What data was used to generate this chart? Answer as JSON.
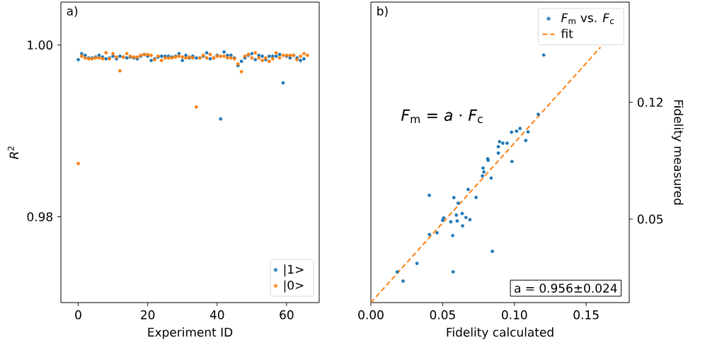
{
  "chart_data": [
    {
      "type": "scatter",
      "title": "a)",
      "xlabel": "Experiment ID",
      "ylabel": "*R*$^{2}$",
      "x": [
        0,
        1,
        2,
        3,
        4,
        5,
        6,
        7,
        8,
        9,
        10,
        11,
        12,
        13,
        14,
        15,
        16,
        17,
        18,
        19,
        20,
        21,
        22,
        23,
        24,
        25,
        26,
        27,
        28,
        29,
        30,
        31,
        32,
        33,
        34,
        35,
        36,
        37,
        38,
        39,
        40,
        41,
        42,
        43,
        44,
        45,
        46,
        47,
        48,
        49,
        50,
        51,
        52,
        53,
        54,
        55,
        56,
        57,
        58,
        59,
        60,
        61,
        62,
        63,
        64,
        65,
        66
      ],
      "series": [
        {
          "name": "|1>",
          "color": "#1f77b4",
          "values": [
            0.9983,
            0.999,
            0.9988,
            0.9985,
            0.9985,
            0.9986,
            0.9988,
            0.9986,
            0.9984,
            0.9985,
            0.9987,
            0.9984,
            0.9987,
            0.9986,
            0.9985,
            0.9986,
            0.9985,
            0.9984,
            0.9987,
            0.9989,
            0.9987,
            0.9982,
            0.9984,
            0.9986,
            0.9987,
            0.9987,
            0.9987,
            0.9986,
            0.9987,
            0.999,
            0.9982,
            0.9988,
            0.9985,
            0.9987,
            0.9985,
            0.9985,
            0.9987,
            0.9991,
            0.9984,
            0.9985,
            0.9988,
            0.9914,
            0.9992,
            0.9988,
            0.9988,
            0.9985,
            0.9976,
            0.9981,
            0.9985,
            0.9988,
            0.999,
            0.9983,
            0.9988,
            0.9987,
            0.9983,
            0.9987,
            0.9987,
            0.9987,
            0.9989,
            0.9956,
            0.9987,
            0.9985,
            0.9988,
            0.9985,
            0.9982,
            0.9984,
            null
          ]
        },
        {
          "name": "|0>",
          "color": "#ff7f0e",
          "values": [
            0.9862,
            0.9987,
            0.9985,
            0.9984,
            0.9984,
            0.9985,
            0.9985,
            0.9984,
            0.9991,
            0.9984,
            0.999,
            0.9986,
            0.997,
            0.9986,
            0.999,
            0.9987,
            0.9986,
            0.9986,
            0.9988,
            0.9989,
            0.9989,
            0.9988,
            0.9983,
            0.9987,
            0.9982,
            0.9985,
            0.9985,
            0.9985,
            0.9986,
            0.9987,
            0.9986,
            0.9985,
            0.9986,
            0.9985,
            0.9928,
            0.9985,
            0.9988,
            0.9985,
            0.9989,
            0.9985,
            0.9987,
            0.9987,
            0.9987,
            0.9985,
            0.9985,
            0.9984,
            0.9978,
            0.9969,
            0.9987,
            0.9989,
            0.9985,
            0.9991,
            0.9985,
            0.9982,
            0.9985,
            0.9981,
            0.9984,
            0.9991,
            0.9985,
            0.9988,
            0.9988,
            0.9988,
            0.9988,
            0.9983,
            0.9987,
            0.999,
            0.9988
          ]
        }
      ],
      "xlim": [
        -5,
        69.4
      ],
      "ylim": [
        0.97,
        1.005
      ],
      "xticks": [
        0,
        20,
        40,
        60
      ],
      "yticks": [
        0.98,
        {
          "value": 1.0,
          "label": "1.00"
        }
      ],
      "legend": "bottom right",
      "marker": "circle"
    },
    {
      "type": "scatter",
      "title": "b)",
      "xlabel": "Fidelity calculated",
      "ylabel": "Fidelity measured",
      "series": [
        {
          "name": "*F*$_{m}$ vs. *F*$_{c}$",
          "color": "#1f77b4",
          "x": [
            0.0183,
            0.0224,
            0.0321,
            0.0407,
            0.0408,
            0.0461,
            0.0507,
            0.0499,
            0.0557,
            0.057,
            0.0573,
            0.0578,
            0.0595,
            0.0601,
            0.0608,
            0.0636,
            0.0639,
            0.0662,
            0.069,
            0.0678,
            0.0733,
            0.0777,
            0.0787,
            0.0782,
            0.0838,
            0.0846,
            0.0814,
            0.0817,
            0.0983,
            0.0888,
            0.0888,
            0.0896,
            0.0919,
            0.0949,
            0.098,
            0.1015,
            0.1039,
            0.1095,
            0.1079,
            0.1166,
            0.1204
          ],
          "values": [
            0.0184,
            0.0129,
            0.0235,
            0.0643,
            0.0408,
            0.0418,
            0.0507,
            0.0493,
            0.0484,
            0.0402,
            0.0184,
            0.0629,
            0.0524,
            0.0489,
            0.0596,
            0.0534,
            0.046,
            0.051,
            0.0497,
            0.0678,
            0.063,
            0.0759,
            0.0783,
            0.0806,
            0.0746,
            0.0307,
            0.0862,
            0.0852,
            0.0845,
            0.0896,
            0.0934,
            0.0964,
            0.0955,
            0.0955,
            0.1021,
            0.1027,
            0.1043,
            0.1023,
            0.0971,
            0.1128,
            0.1483
          ]
        },
        {
          "name": "fit",
          "type": "line",
          "line_style": "dashed",
          "marker": "none",
          "color": "#ff7f0e",
          "x": [
            0,
            0.16
          ],
          "values": [
            0,
            0.153
          ]
        }
      ],
      "xlim": [
        0,
        0.18
      ],
      "ylim": [
        0,
        0.18
      ],
      "xticks": [
        {
          "value": 0,
          "label": "0.00"
        },
        0.05,
        {
          "value": 0.1,
          "label": "0.10"
        },
        0.15
      ],
      "yticks": [
        0.05,
        0.12
      ],
      "annotations": [
        "*F*$_{m}$ = *a* · *F*$_{c}$",
        "a = 0.956±0.024"
      ],
      "legend": "top right",
      "marker": "circle"
    }
  ]
}
